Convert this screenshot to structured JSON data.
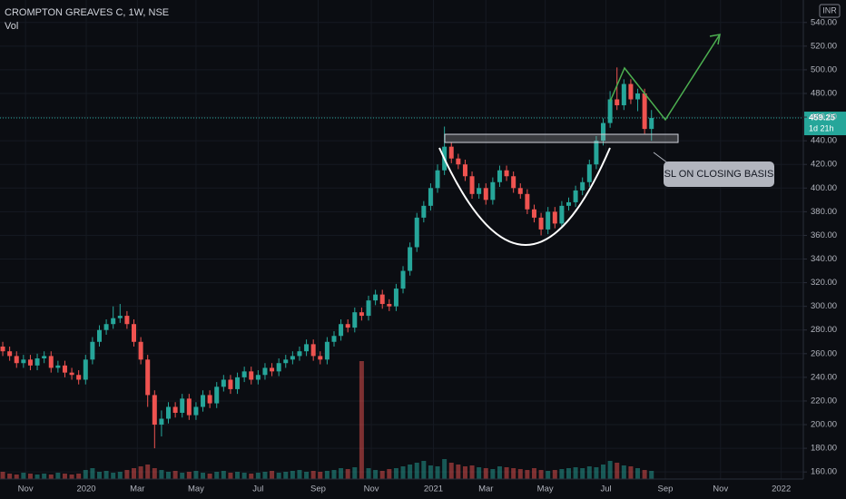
{
  "chart_data": {
    "type": "candlestick",
    "title": "CROMPTON GREAVES C, 1W, NSE",
    "volume_label": "Vol",
    "currency": "INR",
    "countdown": "1d 21h",
    "annotation": "SL ON CLOSING BASIS",
    "up_color": "#26a69a",
    "down_color": "#ef5350",
    "grid": true,
    "xlim": [
      -0.4,
      116
    ],
    "xticks": [
      {
        "value": 3.3,
        "label": "Nov"
      },
      {
        "value": 12.1,
        "label": "2020"
      },
      {
        "value": 19.5,
        "label": "Mar"
      },
      {
        "value": 28,
        "label": "May"
      },
      {
        "value": 37,
        "label": "Jul"
      },
      {
        "value": 45.7,
        "label": "Sep"
      },
      {
        "value": 53.4,
        "label": "Nov"
      },
      {
        "value": 62.4,
        "label": "2021"
      },
      {
        "value": 70,
        "label": "Mar"
      },
      {
        "value": 78.6,
        "label": "May"
      },
      {
        "value": 87.4,
        "label": "Jul"
      },
      {
        "value": 96,
        "label": "Sep"
      },
      {
        "value": 104,
        "label": "Nov"
      },
      {
        "value": 112.8,
        "label": "2022"
      }
    ],
    "ylim": [
      154,
      559
    ],
    "yticks": [
      {
        "value": 160,
        "label": "160.00"
      },
      {
        "value": 180,
        "label": "180.00"
      },
      {
        "value": 200,
        "label": "200.00"
      },
      {
        "value": 220,
        "label": "220.00"
      },
      {
        "value": 240,
        "label": "240.00"
      },
      {
        "value": 260,
        "label": "260.00"
      },
      {
        "value": 280,
        "label": "280.00"
      },
      {
        "value": 300,
        "label": "300.00"
      },
      {
        "value": 320,
        "label": "320.00"
      },
      {
        "value": 340,
        "label": "340.00"
      },
      {
        "value": 360,
        "label": "360.00"
      },
      {
        "value": 380,
        "label": "380.00"
      },
      {
        "value": 400,
        "label": "400.00"
      },
      {
        "value": 420,
        "label": "420.00"
      },
      {
        "value": 440,
        "label": "440.00"
      },
      {
        "value": 460,
        "label": "460.00"
      },
      {
        "value": 480,
        "label": "480.00"
      },
      {
        "value": 500,
        "label": "500.00"
      },
      {
        "value": 520,
        "label": "520.00"
      },
      {
        "value": 540,
        "label": "540.00"
      }
    ],
    "open": [
      266,
      262,
      258,
      252,
      255,
      250,
      256,
      258,
      248,
      250,
      244,
      242,
      238,
      255,
      270,
      280,
      285,
      290,
      292,
      285,
      270,
      255,
      225,
      200,
      205,
      215,
      210,
      222,
      208,
      215,
      225,
      218,
      232,
      238,
      230,
      240,
      245,
      238,
      242,
      248,
      245,
      252,
      255,
      258,
      262,
      268,
      258,
      255,
      270,
      275,
      285,
      282,
      295,
      292,
      305,
      310,
      302,
      300,
      315,
      330,
      350,
      375,
      385,
      400,
      415,
      435,
      425,
      420,
      410,
      395,
      400,
      390,
      405,
      415,
      410,
      400,
      395,
      382,
      375,
      365,
      380,
      370,
      385,
      388,
      398,
      405,
      420,
      440,
      455,
      475,
      470,
      488,
      475,
      480,
      450
    ],
    "high": [
      270,
      266,
      262,
      259,
      259,
      260,
      262,
      262,
      254,
      254,
      248,
      246,
      259,
      274,
      284,
      289,
      300,
      302,
      296,
      289,
      274,
      259,
      229,
      212,
      219,
      219,
      226,
      226,
      219,
      229,
      229,
      236,
      242,
      242,
      244,
      249,
      249,
      246,
      252,
      252,
      256,
      259,
      262,
      266,
      272,
      272,
      262,
      274,
      279,
      289,
      289,
      299,
      299,
      309,
      314,
      314,
      306,
      319,
      334,
      354,
      379,
      389,
      404,
      420,
      452,
      439,
      429,
      424,
      414,
      404,
      404,
      409,
      419,
      419,
      414,
      404,
      399,
      386,
      379,
      384,
      384,
      389,
      392,
      402,
      409,
      424,
      444,
      459,
      482,
      502,
      492,
      492,
      484,
      484,
      466
    ],
    "low": [
      258,
      254,
      248,
      248,
      246,
      246,
      252,
      244,
      244,
      240,
      238,
      234,
      234,
      251,
      266,
      276,
      281,
      286,
      281,
      266,
      251,
      215,
      180,
      190,
      201,
      206,
      206,
      204,
      204,
      211,
      214,
      214,
      228,
      226,
      226,
      236,
      234,
      234,
      238,
      241,
      241,
      248,
      251,
      254,
      258,
      254,
      251,
      251,
      266,
      271,
      278,
      278,
      288,
      288,
      301,
      298,
      296,
      296,
      311,
      326,
      346,
      371,
      381,
      396,
      411,
      421,
      416,
      406,
      391,
      391,
      386,
      386,
      401,
      406,
      396,
      391,
      378,
      371,
      360,
      361,
      366,
      366,
      381,
      384,
      394,
      401,
      416,
      436,
      451,
      466,
      466,
      471,
      465,
      446,
      440
    ],
    "close": [
      262,
      258,
      252,
      255,
      250,
      256,
      258,
      248,
      250,
      244,
      242,
      238,
      255,
      270,
      280,
      285,
      290,
      292,
      285,
      270,
      255,
      225,
      200,
      205,
      215,
      210,
      222,
      208,
      215,
      225,
      218,
      232,
      238,
      230,
      240,
      245,
      238,
      242,
      248,
      245,
      252,
      255,
      258,
      262,
      268,
      258,
      255,
      270,
      275,
      285,
      282,
      295,
      292,
      305,
      310,
      302,
      300,
      315,
      330,
      350,
      375,
      385,
      400,
      415,
      435,
      425,
      420,
      410,
      395,
      400,
      390,
      405,
      415,
      410,
      400,
      395,
      382,
      375,
      365,
      380,
      370,
      385,
      388,
      398,
      405,
      420,
      440,
      455,
      475,
      470,
      488,
      475,
      480,
      450,
      459.25
    ],
    "volume": [
      8,
      6,
      5,
      7,
      6,
      5,
      6,
      5,
      7,
      6,
      5,
      6,
      10,
      12,
      8,
      9,
      7,
      8,
      10,
      12,
      14,
      16,
      12,
      10,
      8,
      9,
      7,
      8,
      9,
      7,
      6,
      8,
      9,
      7,
      8,
      7,
      6,
      7,
      8,
      9,
      7,
      8,
      9,
      10,
      8,
      9,
      8,
      9,
      10,
      12,
      11,
      13,
      130,
      12,
      10,
      9,
      11,
      12,
      14,
      16,
      18,
      20,
      15,
      14,
      22,
      18,
      16,
      14,
      15,
      13,
      12,
      11,
      14,
      13,
      12,
      11,
      10,
      12,
      10,
      9,
      10,
      11,
      12,
      13,
      12,
      14,
      13,
      16,
      20,
      18,
      15,
      14,
      12,
      10,
      9
    ]
  }
}
